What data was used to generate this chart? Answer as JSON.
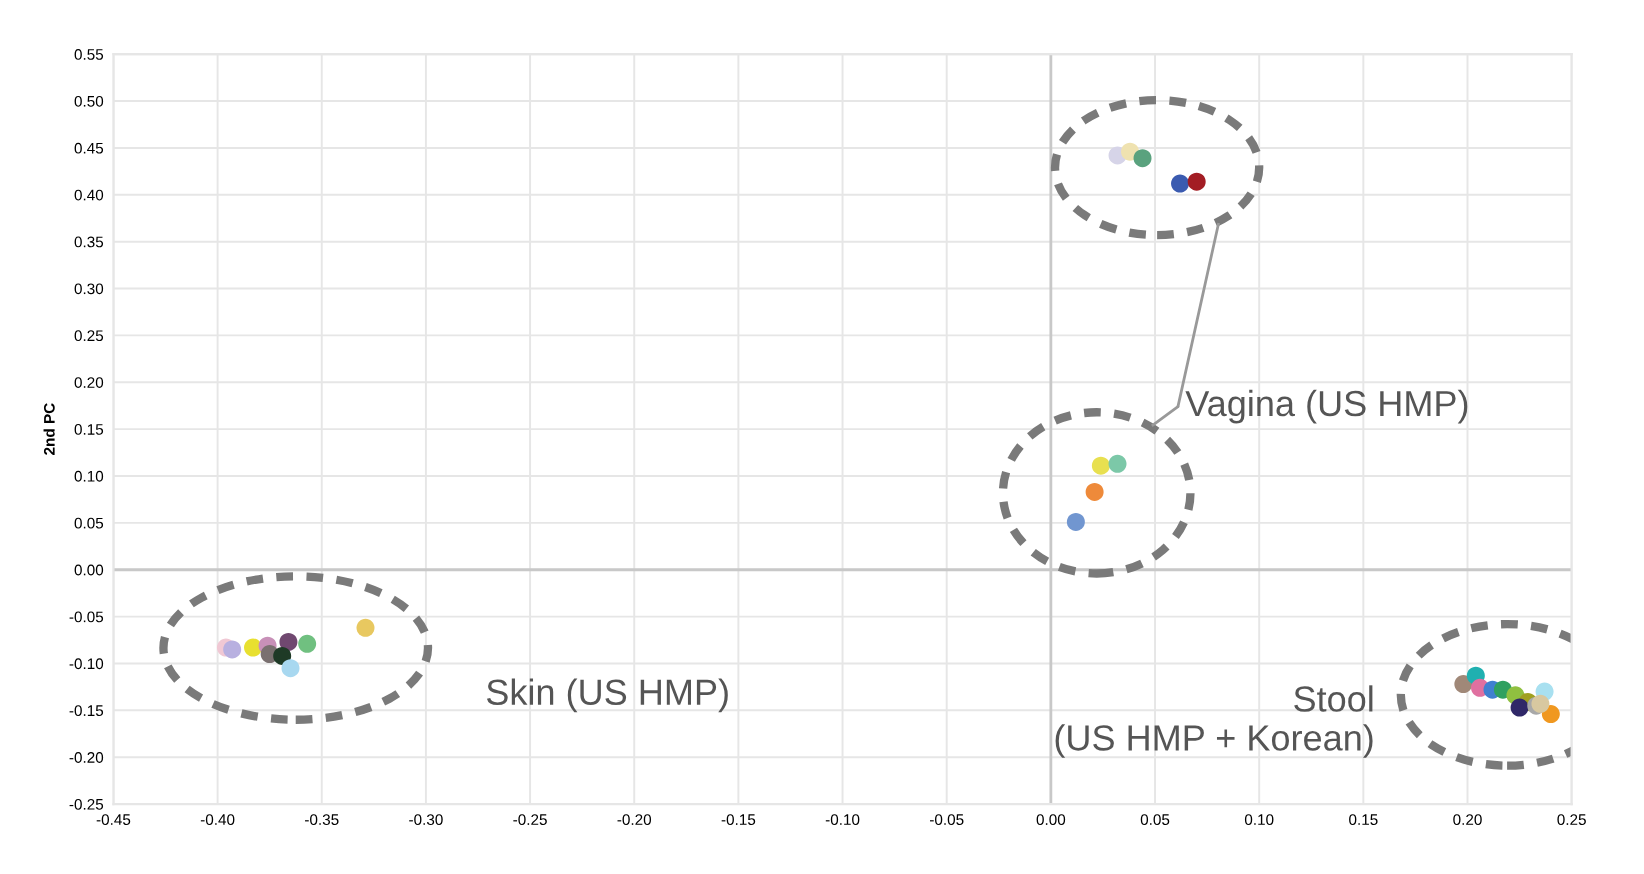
{
  "chart_data": {
    "type": "scatter",
    "ylabel": "2nd PC",
    "series": [
      {
        "x": [
          0.032,
          0.038,
          0.044,
          0.062,
          0.07
        ],
        "values": [
          0.442,
          0.446,
          0.439,
          0.412,
          0.414
        ],
        "colors": [
          "#d6d4e8",
          "#efe2b0",
          "#5aa27e",
          "#3b5bb0",
          "#a31d24"
        ]
      },
      {
        "x": [
          0.024,
          0.032,
          0.021,
          0.012
        ],
        "values": [
          0.111,
          0.113,
          0.083,
          0.051
        ],
        "colors": [
          "#e8e050",
          "#7cc8a8",
          "#ee8a3a",
          "#7196d0"
        ]
      },
      {
        "x": [
          -0.396,
          -0.393,
          -0.383,
          -0.376,
          -0.375,
          -0.366,
          -0.369,
          -0.357,
          -0.365,
          -0.329
        ],
        "values": [
          -0.083,
          -0.085,
          -0.083,
          -0.081,
          -0.09,
          -0.077,
          -0.092,
          -0.079,
          -0.105,
          -0.062
        ],
        "colors": [
          "#f0c8d4",
          "#b8b0e0",
          "#e8e030",
          "#c890b8",
          "#7a7070",
          "#704870",
          "#1e3a26",
          "#70c080",
          "#a8d8f0",
          "#e8c860"
        ]
      },
      {
        "x": [
          0.198,
          0.204,
          0.206,
          0.212,
          0.217,
          0.223,
          0.229,
          0.225,
          0.233,
          0.237,
          0.24,
          0.235
        ],
        "values": [
          -0.122,
          -0.113,
          -0.126,
          -0.128,
          -0.128,
          -0.134,
          -0.141,
          -0.147,
          -0.145,
          -0.13,
          -0.154,
          -0.143
        ],
        "colors": [
          "#a08878",
          "#20b0b0",
          "#e070a0",
          "#4080d0",
          "#30a060",
          "#90c040",
          "#a0a020",
          "#302868",
          "#a8a8a8",
          "#a8e0f0",
          "#f09820",
          "#d8c8a0"
        ]
      }
    ],
    "annotations": [
      "Vagina (US HMP)",
      "Skin (US HMP)",
      "Stool\n(US HMP + Korean)"
    ],
    "xlim": [
      -0.45,
      0.25
    ],
    "ylim": [
      -0.25,
      0.55
    ],
    "xticks": [
      {
        "value": -0.45,
        "label": "-0.45"
      },
      {
        "value": -0.4,
        "label": "-0.40"
      },
      {
        "value": -0.35,
        "label": "-0.35"
      },
      {
        "value": -0.3,
        "label": "-0.30"
      },
      {
        "value": -0.25,
        "label": "-0.25"
      },
      {
        "value": -0.2,
        "label": "-0.20"
      },
      {
        "value": -0.15,
        "label": "-0.15"
      },
      {
        "value": -0.1,
        "label": "-0.10"
      },
      {
        "value": -0.05,
        "label": "-0.05"
      },
      {
        "value": 0,
        "label": "0.00"
      },
      {
        "value": 0.05,
        "label": "0.05"
      },
      {
        "value": 0.1,
        "label": "0.10"
      },
      {
        "value": 0.15,
        "label": "0.15"
      },
      {
        "value": 0.2,
        "label": "0.20"
      },
      {
        "value": 0.25,
        "label": "0.25"
      }
    ],
    "yticks": [
      {
        "value": -0.25,
        "label": "-0.25"
      },
      {
        "value": -0.2,
        "label": "-0.20"
      },
      {
        "value": -0.15,
        "label": "-0.15"
      },
      {
        "value": -0.1,
        "label": "-0.10"
      },
      {
        "value": -0.05,
        "label": "-0.05"
      },
      {
        "value": 0,
        "label": "0.00"
      },
      {
        "value": 0.05,
        "label": "0.05"
      },
      {
        "value": 0.1,
        "label": "0.10"
      },
      {
        "value": 0.15,
        "label": "0.15"
      },
      {
        "value": 0.2,
        "label": "0.20"
      },
      {
        "value": 0.25,
        "label": "0.25"
      },
      {
        "value": 0.3,
        "label": "0.30"
      },
      {
        "value": 0.35,
        "label": "0.35"
      },
      {
        "value": 0.4,
        "label": "0.40"
      },
      {
        "value": 0.45,
        "label": "0.45"
      },
      {
        "value": 0.5,
        "label": "0.50"
      },
      {
        "value": 0.55,
        "label": "0.55"
      }
    ],
    "grid": true,
    "marker": "circle"
  }
}
